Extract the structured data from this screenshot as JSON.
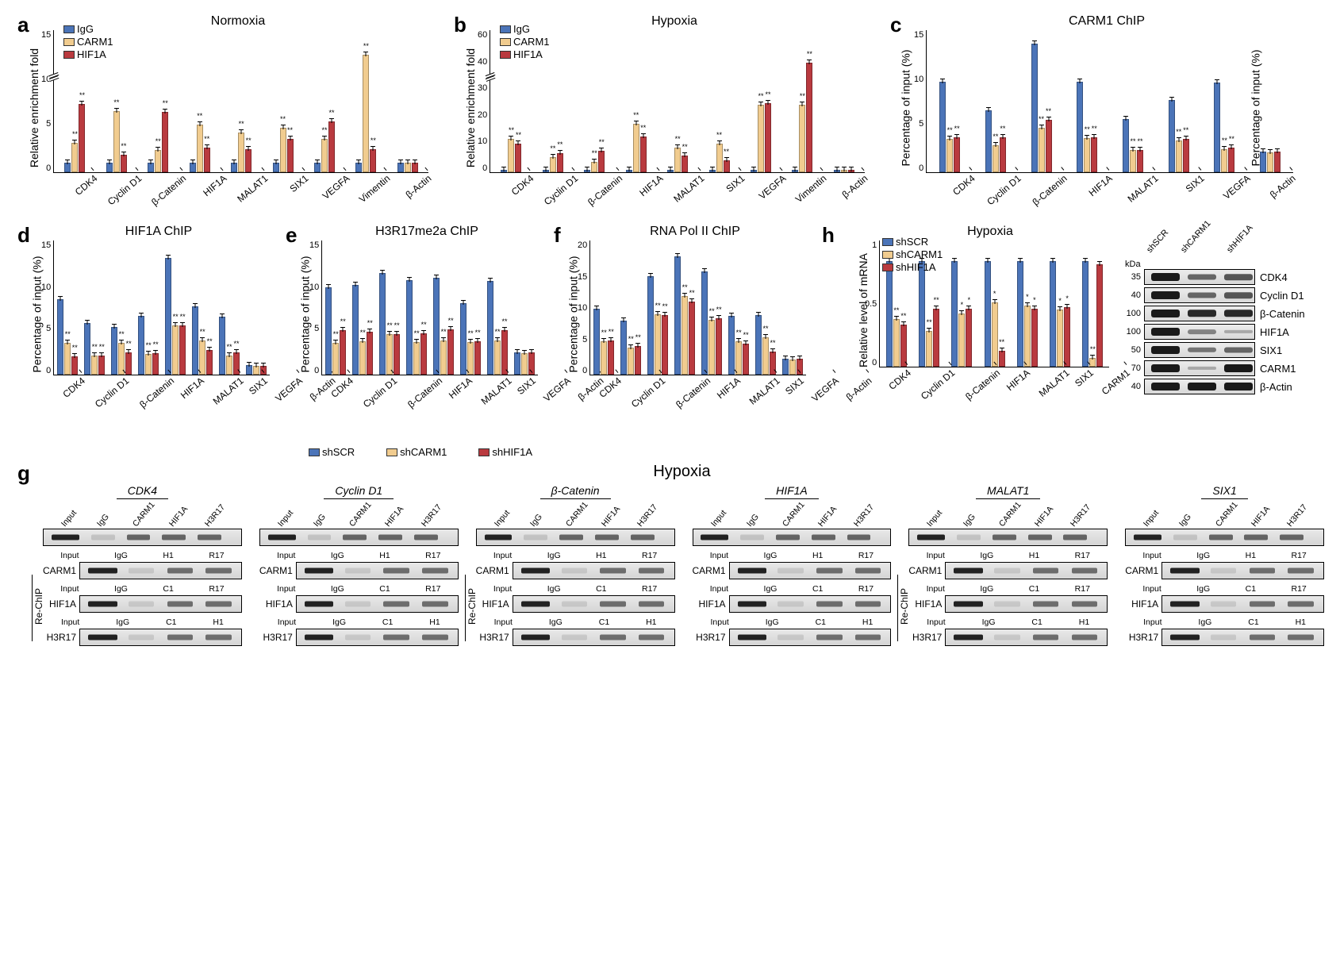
{
  "colors": {
    "igg_shscr": "#4b74b8",
    "carm1_shcarm1": "#f1cc8f",
    "hif1a_shhif1a": "#b93a3f"
  },
  "row1_legends": {
    "a": "IgG",
    "b": "CARM1",
    "c": "HIF1A"
  },
  "mid_legend": {
    "a": "shSCR",
    "b": "shCARM1",
    "c": "shHIF1A"
  },
  "h_legend": {
    "a": "shSCR",
    "b": "shCARM1",
    "c": "shHIF1A"
  },
  "categories_full": [
    "CDK4",
    "Cyclin D1",
    "β-Catenin",
    "HIF1A",
    "MALAT1",
    "SIX1",
    "VEGFA",
    "Vimentin",
    "β-Actin"
  ],
  "categories_noVim": [
    "CDK4",
    "Cyclin D1",
    "β-Catenin",
    "HIF1A",
    "MALAT1",
    "SIX1",
    "VEGFA",
    "β-Actin"
  ],
  "categories_h": [
    "CDK4",
    "Cyclin D1",
    "β-Catenin",
    "HIF1A",
    "MALAT1",
    "SIX1",
    "CARM1"
  ],
  "panels": {
    "a": {
      "title": "Normoxia",
      "ylabel": "Relative enrichment fold",
      "ymax": 15,
      "yticks": [
        0,
        5,
        10,
        15
      ],
      "axis_break_at": 10,
      "series": [
        "igg",
        "carm1",
        "hif1a"
      ],
      "data": [
        [
          1,
          1,
          1,
          1,
          1,
          1,
          1,
          1,
          1
        ],
        [
          3.1,
          6.4,
          2.3,
          5.0,
          4.2,
          4.7,
          3.5,
          12.3,
          1.0
        ],
        [
          7.2,
          1.8,
          6.3,
          2.6,
          2.4,
          3.5,
          5.3,
          2.4,
          1.0
        ]
      ],
      "sig": [
        [
          "",
          "",
          "",
          "",
          "",
          "",
          "",
          "",
          ""
        ],
        [
          "**",
          "**",
          "**",
          "**",
          "**",
          "**",
          "**",
          "**",
          ""
        ],
        [
          "**",
          "**",
          "**",
          "**",
          "**",
          "**",
          "**",
          "**",
          ""
        ]
      ]
    },
    "b": {
      "title": "Hypoxia",
      "ylabel": "Relative enrichment fold",
      "ymax": 60,
      "yticks": [
        0,
        10,
        20,
        30,
        40,
        60
      ],
      "axis_break_at": 40,
      "series": [
        "igg",
        "carm1",
        "hif1a"
      ],
      "data": [
        [
          1,
          1,
          1,
          1,
          1,
          1,
          1,
          1,
          1
        ],
        [
          14,
          6.5,
          4.5,
          20.5,
          10.2,
          12,
          28.5,
          28.5,
          1
        ],
        [
          12,
          8,
          9,
          15,
          7,
          5,
          29,
          46,
          1
        ]
      ],
      "sig": [
        [
          "",
          "",
          "",
          "",
          "",
          "",
          "",
          "",
          ""
        ],
        [
          "**",
          "**",
          "**",
          "**",
          "**",
          "**",
          "**",
          "**",
          ""
        ],
        [
          "**",
          "**",
          "**",
          "**",
          "**",
          "**",
          "**",
          "**",
          ""
        ]
      ]
    },
    "c": {
      "title": "CARM1 ChIP",
      "ylabel": "Percentage of input (%)",
      "ylabel_right": "Percentage of input (%)",
      "ymax": 15,
      "yticks": [
        0,
        5,
        10,
        15
      ],
      "data": [
        [
          9.5,
          6.5,
          13.5,
          9.5,
          5.6,
          7.6,
          9.4,
          2.2
        ],
        [
          3.5,
          2.8,
          4.7,
          3.6,
          2.3,
          3.3,
          2.4,
          2.1
        ],
        [
          3.7,
          3.7,
          5.5,
          3.7,
          2.3,
          3.5,
          2.6,
          2.2
        ]
      ],
      "sig": [
        [
          "",
          "",
          "",
          "",
          "",
          "",
          "",
          ""
        ],
        [
          "**",
          "**",
          "**",
          "**",
          "**",
          "**",
          "**",
          ""
        ],
        [
          "**",
          "**",
          "**",
          "**",
          "**",
          "**",
          "**",
          ""
        ]
      ]
    },
    "d": {
      "title": "HIF1A ChIP",
      "ylabel": "Percentage of input (%)",
      "ymax": 15,
      "yticks": [
        0,
        5,
        10,
        15
      ],
      "data": [
        [
          8.4,
          5.7,
          5.3,
          6.5,
          13.0,
          7.6,
          6.4,
          1.1
        ],
        [
          3.5,
          2.1,
          3.5,
          2.3,
          5.5,
          3.8,
          2.1,
          1.0
        ],
        [
          2.0,
          2.1,
          2.5,
          2.4,
          5.5,
          2.7,
          2.5,
          1.0
        ]
      ],
      "sig": [
        [
          "",
          "",
          "",
          "",
          "",
          "",
          "",
          ""
        ],
        [
          "**",
          "**",
          "**",
          "**",
          "**",
          "**",
          "**",
          ""
        ],
        [
          "**",
          "**",
          "**",
          "**",
          "**",
          "**",
          "**",
          ""
        ]
      ]
    },
    "e": {
      "title": "H3R17me2a ChIP",
      "ylabel": "Percentage of input (%)",
      "ymax": 15,
      "yticks": [
        0,
        5,
        10,
        15
      ],
      "data": [
        [
          9.7,
          10.0,
          11.3,
          10.5,
          10.8,
          7.9,
          10.4,
          2.5
        ],
        [
          3.5,
          3.7,
          4.5,
          3.6,
          3.8,
          3.6,
          3.8,
          2.4
        ],
        [
          4.9,
          4.8,
          4.5,
          4.6,
          5.0,
          3.7,
          4.9,
          2.5
        ]
      ],
      "sig": [
        [
          "",
          "",
          "",
          "",
          "",
          "",
          "",
          ""
        ],
        [
          "**",
          "**",
          "**",
          "**",
          "**",
          "**",
          "**",
          ""
        ],
        [
          "**",
          "**",
          "**",
          "**",
          "**",
          "**",
          "**",
          ""
        ]
      ]
    },
    "f": {
      "title": "RNA Pol II ChIP",
      "ylabel": "Percentage of input (%)",
      "ymax": 20,
      "yticks": [
        0,
        5,
        10,
        15,
        20
      ],
      "data": [
        [
          9.8,
          8.0,
          14.6,
          17.5,
          15.3,
          8.7,
          8.8,
          2.4
        ],
        [
          5.0,
          4.0,
          9.0,
          11.7,
          8.1,
          5.0,
          5.5,
          2.2
        ],
        [
          5.1,
          4.2,
          8.8,
          10.8,
          8.3,
          4.6,
          3.4,
          2.3
        ]
      ],
      "sig": [
        [
          "",
          "",
          "",
          "",
          "",
          "",
          "",
          ""
        ],
        [
          "**",
          "**",
          "**",
          "**",
          "**",
          "**",
          "**",
          ""
        ],
        [
          "**",
          "**",
          "**",
          "**",
          "**",
          "**",
          "**",
          ""
        ]
      ]
    },
    "h_chart": {
      "title": "Hypoxia",
      "ylabel": "Relative level of mRNA",
      "ymax": 1.2,
      "yticks": [
        0,
        0.5,
        1.0
      ],
      "data": [
        [
          1,
          1,
          1,
          1,
          1,
          1,
          1
        ],
        [
          0.45,
          0.34,
          0.5,
          0.61,
          0.58,
          0.54,
          0.08
        ],
        [
          0.4,
          0.55,
          0.55,
          0.15,
          0.55,
          0.56,
          0.97
        ]
      ],
      "sig": [
        [
          "",
          "",
          "",
          "",
          "",
          "",
          ""
        ],
        [
          "**",
          "**",
          "*",
          "*",
          "*",
          "*",
          "**"
        ],
        [
          "**",
          "**",
          "*",
          "**",
          "*",
          "*",
          ""
        ]
      ]
    }
  },
  "g": {
    "title": "Hypoxia",
    "top_lanes": [
      "Input",
      "IgG",
      "CARM1",
      "HIF1A",
      "H3R17"
    ],
    "genes": [
      "CDK4",
      "Cyclin D1",
      "β-Catenin",
      "HIF1A",
      "MALAT1",
      "SIX1"
    ],
    "rechip_label": "Re-ChIP",
    "sub_rows": [
      {
        "name": "CARM1",
        "lanes": [
          "Input",
          "IgG",
          "H1",
          "R17"
        ]
      },
      {
        "name": "HIF1A",
        "lanes": [
          "Input",
          "IgG",
          "C1",
          "R17"
        ]
      },
      {
        "name": "H3R17",
        "lanes": [
          "Input",
          "IgG",
          "C1",
          "H1"
        ]
      }
    ]
  },
  "h_blots": {
    "lanes": [
      "shSCR",
      "shCARM1",
      "shHIF1A"
    ],
    "kda_label": "kDa",
    "rows": [
      {
        "kda": "35",
        "name": "CDK4",
        "bands": [
          1,
          0.5,
          0.6
        ]
      },
      {
        "kda": "40",
        "name": "Cyclin D1",
        "bands": [
          1,
          0.5,
          0.6
        ]
      },
      {
        "kda": "100",
        "name": "β-Catenin",
        "bands": [
          1,
          0.9,
          0.9
        ]
      },
      {
        "kda": "100",
        "name": "HIF1A",
        "bands": [
          1,
          0.3,
          0.05
        ]
      },
      {
        "kda": "50",
        "name": "SIX1",
        "bands": [
          1,
          0.4,
          0.5
        ]
      },
      {
        "kda": "70",
        "name": "CARM1",
        "bands": [
          1,
          0.05,
          1
        ]
      },
      {
        "kda": "40",
        "name": "β-Actin",
        "bands": [
          1,
          1,
          1
        ]
      }
    ]
  }
}
